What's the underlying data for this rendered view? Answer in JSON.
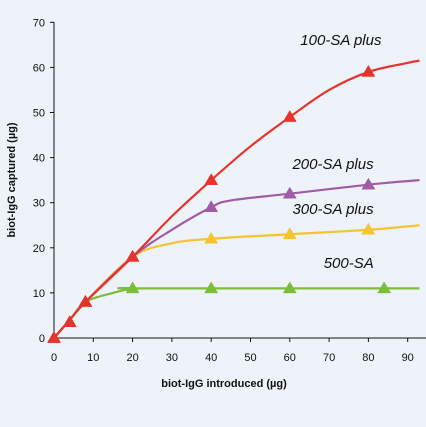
{
  "chart_data": {
    "type": "line",
    "xlabel": "biot-IgG introduced (µg)",
    "ylabel": "biot-IgG captured (µg)",
    "xlim": [
      0,
      90
    ],
    "ylim": [
      0,
      70
    ],
    "x_ticks": [
      0,
      10,
      20,
      30,
      40,
      50,
      60,
      70,
      80,
      90
    ],
    "y_ticks": [
      0,
      10,
      20,
      30,
      40,
      50,
      60,
      70
    ],
    "grid": false,
    "legend": "inline labels near line ends",
    "series": [
      {
        "name": "100-SA plus",
        "color": "#e8322c",
        "marker": "triangle",
        "curve": [
          [
            0,
            0
          ],
          [
            4,
            4
          ],
          [
            8,
            8
          ],
          [
            20,
            18
          ],
          [
            30,
            27
          ],
          [
            40,
            35
          ],
          [
            50,
            42.5
          ],
          [
            60,
            49
          ],
          [
            70,
            55
          ],
          [
            80,
            59
          ],
          [
            90,
            61
          ],
          [
            93,
            61.5
          ]
        ],
        "markers": [
          [
            0,
            0
          ],
          [
            4,
            3.5
          ],
          [
            8,
            8
          ],
          [
            20,
            18
          ],
          [
            40,
            35
          ],
          [
            60,
            49
          ],
          [
            80,
            59
          ]
        ]
      },
      {
        "name": "200-SA plus",
        "color": "#a15ca8",
        "marker": "triangle",
        "curve": [
          [
            0,
            0
          ],
          [
            4,
            4
          ],
          [
            8,
            8
          ],
          [
            20,
            18
          ],
          [
            30,
            24
          ],
          [
            40,
            29
          ],
          [
            45,
            30.5
          ],
          [
            60,
            32
          ],
          [
            80,
            34
          ],
          [
            93,
            35
          ]
        ],
        "markers": [
          [
            0,
            0
          ],
          [
            4,
            3.5
          ],
          [
            8,
            8
          ],
          [
            20,
            18
          ],
          [
            40,
            29
          ],
          [
            60,
            32
          ],
          [
            80,
            34
          ]
        ]
      },
      {
        "name": "300-SA plus",
        "color": "#f5c430",
        "marker": "triangle",
        "curve": [
          [
            0,
            0
          ],
          [
            4,
            4
          ],
          [
            8,
            8
          ],
          [
            20,
            18
          ],
          [
            30,
            21
          ],
          [
            40,
            22
          ],
          [
            60,
            23
          ],
          [
            80,
            24
          ],
          [
            93,
            25
          ]
        ],
        "markers": [
          [
            0,
            0
          ],
          [
            4,
            3.5
          ],
          [
            8,
            8
          ],
          [
            20,
            18
          ],
          [
            40,
            22
          ],
          [
            60,
            23
          ],
          [
            80,
            24
          ]
        ]
      },
      {
        "name": "500-SA",
        "color": "#7dbd3c",
        "marker": "triangle",
        "curve": [
          [
            0,
            0
          ],
          [
            4,
            4
          ],
          [
            8,
            8
          ],
          [
            15,
            10
          ],
          [
            20,
            11
          ],
          [
            22,
            11
          ],
          [
            93,
            11
          ]
        ],
        "markers": [
          [
            0,
            0
          ],
          [
            4,
            3.5
          ],
          [
            8,
            8
          ],
          [
            20,
            11
          ],
          [
            40,
            11
          ],
          [
            60,
            11
          ],
          [
            84,
            11
          ]
        ]
      }
    ],
    "labels": [
      {
        "text": "100-SA plus",
        "series": 0,
        "x": 73,
        "y": 65,
        "color": "#111"
      },
      {
        "text": "200-SA plus",
        "series": 1,
        "x": 71,
        "y": 37.5,
        "color": "#111"
      },
      {
        "text": "300-SA plus",
        "series": 2,
        "x": 71,
        "y": 27.5,
        "color": "#111"
      },
      {
        "text": "500-SA",
        "series": 3,
        "x": 75,
        "y": 15.5,
        "color": "#111"
      }
    ]
  }
}
